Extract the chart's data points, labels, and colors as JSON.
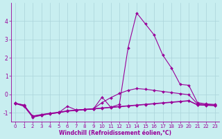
{
  "title": "",
  "xlabel": "Windchill (Refroidissement éolien,°C)",
  "background_color": "#c8eef0",
  "grid_color": "#aad4da",
  "line_color": "#990099",
  "x_values": [
    0,
    1,
    2,
    3,
    4,
    5,
    6,
    7,
    8,
    9,
    10,
    11,
    12,
    13,
    14,
    15,
    16,
    17,
    18,
    19,
    20,
    21,
    22,
    23
  ],
  "series": [
    [
      -0.5,
      -0.65,
      -1.25,
      -1.15,
      -1.05,
      -1.0,
      -0.65,
      -0.85,
      -0.82,
      -0.8,
      -0.15,
      -0.7,
      -0.55,
      2.55,
      4.45,
      3.85,
      3.25,
      2.15,
      1.45,
      0.55,
      0.5,
      -0.45,
      -0.52,
      -0.55
    ],
    [
      -0.5,
      -0.62,
      -1.2,
      -1.12,
      -1.05,
      -1.0,
      -0.92,
      -0.88,
      -0.84,
      -0.8,
      -0.76,
      -0.72,
      -0.68,
      -0.64,
      -0.6,
      -0.56,
      -0.52,
      -0.48,
      -0.44,
      -0.4,
      -0.36,
      -0.58,
      -0.6,
      -0.62
    ],
    [
      -0.48,
      -0.6,
      -1.18,
      -1.1,
      -1.03,
      -0.97,
      -0.9,
      -0.86,
      -0.82,
      -0.78,
      -0.74,
      -0.7,
      -0.66,
      -0.62,
      -0.58,
      -0.54,
      -0.5,
      -0.46,
      -0.42,
      -0.38,
      -0.34,
      -0.56,
      -0.58,
      -0.6
    ],
    [
      -0.48,
      -0.58,
      -1.22,
      -1.13,
      -1.06,
      -1.0,
      -0.9,
      -0.87,
      -0.83,
      -0.79,
      -0.45,
      -0.18,
      0.05,
      0.22,
      0.32,
      0.28,
      0.22,
      0.16,
      0.1,
      0.04,
      -0.02,
      -0.52,
      -0.56,
      -0.58
    ]
  ],
  "ylim": [
    -1.5,
    5.0
  ],
  "yticks": [
    -1,
    0,
    1,
    2,
    3,
    4
  ],
  "xlim": [
    -0.5,
    23.5
  ],
  "xticks": [
    0,
    1,
    2,
    3,
    4,
    5,
    6,
    7,
    8,
    9,
    10,
    11,
    12,
    13,
    14,
    15,
    16,
    17,
    18,
    19,
    20,
    21,
    22,
    23
  ],
  "marker": "D",
  "markersize": 2.0,
  "linewidth": 0.8,
  "tick_fontsize": 5.0,
  "xlabel_fontsize": 5.5
}
